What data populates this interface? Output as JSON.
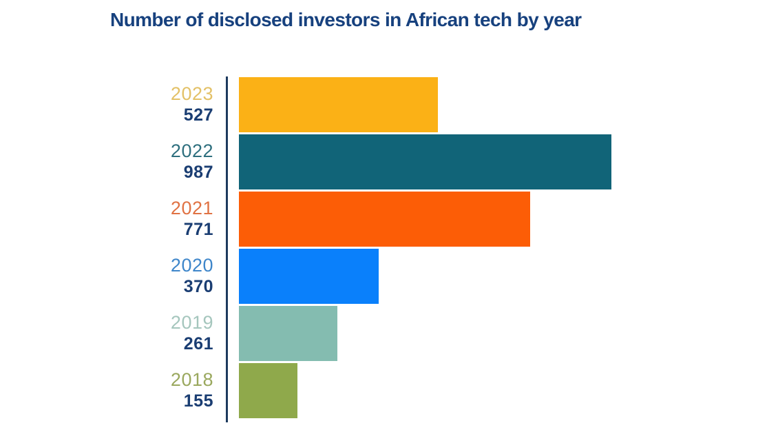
{
  "chart_data": {
    "type": "bar",
    "orientation": "horizontal",
    "title": "Number of disclosed investors in African tech by year",
    "categories": [
      "2023",
      "2022",
      "2021",
      "2020",
      "2019",
      "2018"
    ],
    "values": [
      527,
      987,
      771,
      370,
      261,
      155
    ],
    "xlabel": "",
    "ylabel": "",
    "xlim": [
      0,
      987
    ],
    "grid": false,
    "legend": false,
    "bar_colors": [
      "#FBB116",
      "#116478",
      "#FC5D06",
      "#0A80FB",
      "#84BCB0",
      "#8FA94B"
    ],
    "year_label_colors": [
      "#E3C167",
      "#2E6F7E",
      "#E07243",
      "#3E86CA",
      "#A5C6BD",
      "#9AA85E"
    ],
    "value_label_color": "#1A3D72",
    "title_color": "#17417E",
    "axis_color": "#1D3A5E",
    "background_color": "#FFFFFF"
  }
}
